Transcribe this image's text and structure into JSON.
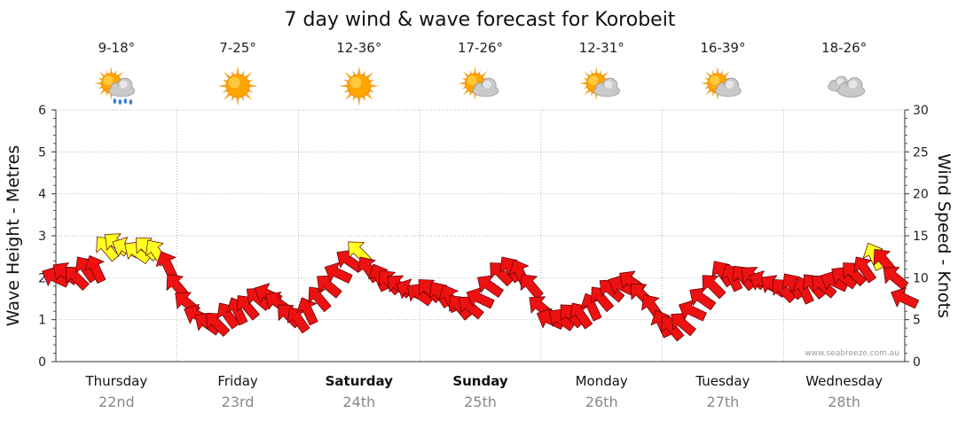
{
  "chart_data": {
    "type": "line",
    "title": "7 day wind & wave forecast for Korobeit",
    "left_axis": {
      "label": "Wave Height - Metres",
      "ylim": [
        0,
        6
      ],
      "ticks": [
        "0",
        "1",
        "2",
        "3",
        "4",
        "5",
        "6"
      ]
    },
    "right_axis": {
      "label": "Wind Speed - Knots",
      "ylim": [
        0,
        30
      ],
      "ticks": [
        "0",
        "5",
        "10",
        "15",
        "20",
        "25",
        "30"
      ]
    },
    "grid": true,
    "watermark": "www.seabreeze.com.au",
    "days": [
      {
        "name": "Thursday",
        "date": "22nd",
        "temp": "9-18°",
        "weather_icon": "sun-cloud-rain-icon",
        "bold": false
      },
      {
        "name": "Friday",
        "date": "23rd",
        "temp": "7-25°",
        "weather_icon": "sun-icon",
        "bold": false
      },
      {
        "name": "Saturday",
        "date": "24th",
        "temp": "12-36°",
        "weather_icon": "sun-icon",
        "bold": true
      },
      {
        "name": "Sunday",
        "date": "25th",
        "temp": "17-26°",
        "weather_icon": "sun-cloud-icon",
        "bold": true
      },
      {
        "name": "Monday",
        "date": "26th",
        "temp": "12-31°",
        "weather_icon": "sun-cloud-icon",
        "bold": false
      },
      {
        "name": "Tuesday",
        "date": "27th",
        "temp": "16-39°",
        "weather_icon": "sun-cloud-icon",
        "bold": false
      },
      {
        "name": "Wednesday",
        "date": "28th",
        "temp": "18-26°",
        "weather_icon": "cloud-icon",
        "bold": false
      }
    ],
    "series": [
      {
        "name": "Wind Speed",
        "unit": "knots",
        "colors": {
          "normal": "#ee1111",
          "strong": "#ffff22"
        },
        "strong_threshold_knots": 12.5,
        "points": [
          {
            "day": 0.0,
            "knots": 10.0
          },
          {
            "day": 0.08,
            "knots": 10.5
          },
          {
            "day": 0.17,
            "knots": 10.0
          },
          {
            "day": 0.25,
            "knots": 11.0
          },
          {
            "day": 0.33,
            "knots": 11.0
          },
          {
            "day": 0.42,
            "knots": 13.5
          },
          {
            "day": 0.5,
            "knots": 14.0
          },
          {
            "day": 0.58,
            "knots": 13.5
          },
          {
            "day": 0.67,
            "knots": 13.0
          },
          {
            "day": 0.75,
            "knots": 13.5
          },
          {
            "day": 0.83,
            "knots": 13.0
          },
          {
            "day": 0.92,
            "knots": 11.5
          },
          {
            "day": 1.0,
            "knots": 9.0
          },
          {
            "day": 1.08,
            "knots": 7.0
          },
          {
            "day": 1.17,
            "knots": 5.5
          },
          {
            "day": 1.25,
            "knots": 4.5
          },
          {
            "day": 1.33,
            "knots": 4.5
          },
          {
            "day": 1.42,
            "knots": 5.5
          },
          {
            "day": 1.5,
            "knots": 6.0
          },
          {
            "day": 1.58,
            "knots": 6.5
          },
          {
            "day": 1.67,
            "knots": 7.5
          },
          {
            "day": 1.75,
            "knots": 8.0
          },
          {
            "day": 1.83,
            "knots": 7.0
          },
          {
            "day": 1.92,
            "knots": 5.5
          },
          {
            "day": 2.0,
            "knots": 5.0
          },
          {
            "day": 2.08,
            "knots": 6.0
          },
          {
            "day": 2.17,
            "knots": 7.5
          },
          {
            "day": 2.25,
            "knots": 9.0
          },
          {
            "day": 2.33,
            "knots": 10.5
          },
          {
            "day": 2.42,
            "knots": 12.0
          },
          {
            "day": 2.5,
            "knots": 13.0
          },
          {
            "day": 2.58,
            "knots": 11.0
          },
          {
            "day": 2.67,
            "knots": 10.0
          },
          {
            "day": 2.75,
            "knots": 9.5
          },
          {
            "day": 2.83,
            "knots": 9.0
          },
          {
            "day": 2.92,
            "knots": 8.5
          },
          {
            "day": 3.0,
            "knots": 8.0
          },
          {
            "day": 3.08,
            "knots": 8.5
          },
          {
            "day": 3.17,
            "knots": 8.0
          },
          {
            "day": 3.25,
            "knots": 7.5
          },
          {
            "day": 3.33,
            "knots": 6.5
          },
          {
            "day": 3.42,
            "knots": 6.5
          },
          {
            "day": 3.5,
            "knots": 7.5
          },
          {
            "day": 3.58,
            "knots": 9.0
          },
          {
            "day": 3.67,
            "knots": 10.5
          },
          {
            "day": 3.75,
            "knots": 11.0
          },
          {
            "day": 3.83,
            "knots": 10.5
          },
          {
            "day": 3.92,
            "knots": 9.0
          },
          {
            "day": 4.0,
            "knots": 6.5
          },
          {
            "day": 4.08,
            "knots": 5.0
          },
          {
            "day": 4.17,
            "knots": 5.0
          },
          {
            "day": 4.25,
            "knots": 5.5
          },
          {
            "day": 4.33,
            "knots": 5.5
          },
          {
            "day": 4.42,
            "knots": 6.5
          },
          {
            "day": 4.5,
            "knots": 7.5
          },
          {
            "day": 4.58,
            "knots": 8.5
          },
          {
            "day": 4.67,
            "knots": 9.0
          },
          {
            "day": 4.75,
            "knots": 9.5
          },
          {
            "day": 4.83,
            "knots": 8.0
          },
          {
            "day": 4.92,
            "knots": 6.5
          },
          {
            "day": 5.0,
            "knots": 4.5
          },
          {
            "day": 5.08,
            "knots": 4.0
          },
          {
            "day": 5.17,
            "knots": 4.5
          },
          {
            "day": 5.25,
            "knots": 6.0
          },
          {
            "day": 5.33,
            "knots": 7.5
          },
          {
            "day": 5.42,
            "knots": 9.0
          },
          {
            "day": 5.5,
            "knots": 10.5
          },
          {
            "day": 5.58,
            "knots": 10.0
          },
          {
            "day": 5.67,
            "knots": 10.0
          },
          {
            "day": 5.75,
            "knots": 10.0
          },
          {
            "day": 5.83,
            "knots": 9.5
          },
          {
            "day": 5.92,
            "knots": 9.0
          },
          {
            "day": 6.0,
            "knots": 8.5
          },
          {
            "day": 6.08,
            "knots": 9.0
          },
          {
            "day": 6.17,
            "knots": 8.5
          },
          {
            "day": 6.25,
            "knots": 9.0
          },
          {
            "day": 6.33,
            "knots": 9.0
          },
          {
            "day": 6.42,
            "knots": 9.5
          },
          {
            "day": 6.5,
            "knots": 10.0
          },
          {
            "day": 6.58,
            "knots": 10.5
          },
          {
            "day": 6.67,
            "knots": 11.0
          },
          {
            "day": 6.75,
            "knots": 12.5
          },
          {
            "day": 6.83,
            "knots": 12.0
          },
          {
            "day": 6.92,
            "knots": 10.0
          },
          {
            "day": 7.0,
            "knots": 7.5
          }
        ]
      }
    ]
  }
}
